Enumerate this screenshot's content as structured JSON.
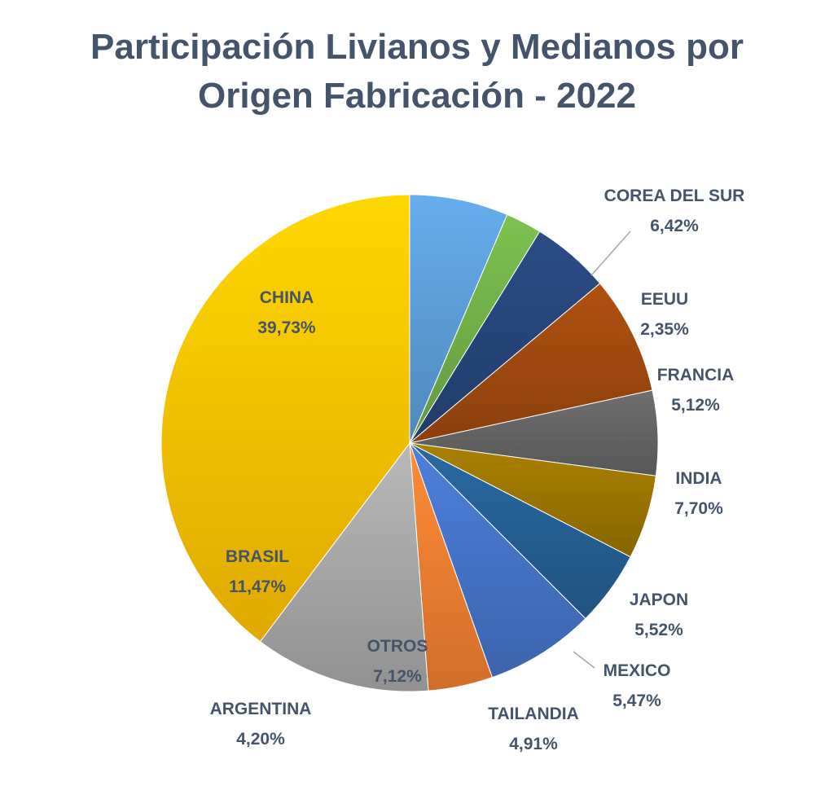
{
  "chart_data": {
    "type": "pie",
    "title": [
      "Participación Livianos y Medianos por",
      "Origen Fabricación - 2022"
    ],
    "start": "12 o'clock",
    "direction": "clockwise",
    "legend": "none",
    "slices": [
      {
        "label": "COREA DEL SUR",
        "value": 6.42,
        "display": "6,42%",
        "color": "#5b9bd5"
      },
      {
        "label": "EEUU",
        "value": 2.35,
        "display": "2,35%",
        "color": "#70ad47"
      },
      {
        "label": "FRANCIA",
        "value": 5.12,
        "display": "5,12%",
        "color": "#264478"
      },
      {
        "label": "INDIA",
        "value": 7.7,
        "display": "7,70%",
        "color": "#9e480e"
      },
      {
        "label": "JAPON",
        "value": 5.52,
        "display": "5,52%",
        "color": "#636363"
      },
      {
        "label": "MEXICO",
        "value": 5.47,
        "display": "5,47%",
        "color": "#997300"
      },
      {
        "label": "TAILANDIA",
        "value": 4.91,
        "display": "4,91%",
        "color": "#255e91"
      },
      {
        "label": "OTROS",
        "value": 7.12,
        "display": "7,12%",
        "color": "#4472c4"
      },
      {
        "label": "ARGENTINA",
        "value": 4.2,
        "display": "4,20%",
        "color": "#ed7d31"
      },
      {
        "label": "BRASIL",
        "value": 11.47,
        "display": "11,47%",
        "color": "#a5a5a5"
      },
      {
        "label": "CHINA",
        "value": 39.73,
        "display": "39,73%",
        "color": "#ffc000"
      }
    ]
  }
}
